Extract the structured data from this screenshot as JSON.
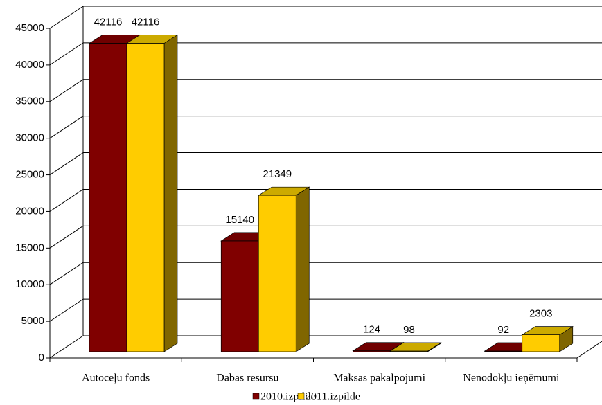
{
  "chart_data": {
    "type": "bar3d",
    "categories": [
      "Autoceļu fonds",
      "Dabas resursu",
      "Maksas pakalpojumi",
      "Nenodokļu ieņēmumi"
    ],
    "series": [
      {
        "name": "2010.izpilde",
        "color": "#800000",
        "values": [
          42116,
          15140,
          124,
          92
        ]
      },
      {
        "name": "2011.izpilde",
        "color": "#ffcc00",
        "values": [
          42116,
          21349,
          98,
          2303
        ]
      }
    ],
    "ylim": [
      0,
      45000
    ],
    "yticks": [
      0,
      5000,
      10000,
      15000,
      20000,
      25000,
      30000,
      35000,
      40000,
      45000
    ],
    "grid": true,
    "legend": "bottom"
  }
}
